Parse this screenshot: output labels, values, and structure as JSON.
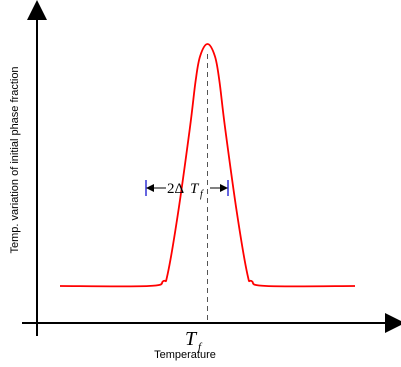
{
  "chart_data": {
    "type": "line",
    "xlabel": "Temperature",
    "ylabel": "Temp. variation of initial phase fraction",
    "x_tick_label": {
      "main": "T",
      "sub": "f"
    },
    "peak_marker_label": "T_f",
    "width_annotation": {
      "prefix": "2Δ",
      "main": "T",
      "sub": "f"
    },
    "grid": false,
    "legend": "none",
    "colors": {
      "curve": "#ff0000",
      "axes": "#000000",
      "width_marker": "#0000cc",
      "dashed_line": "#555555"
    },
    "series": [
      {
        "values_note_skip": false,
        "x": [
          -1.0,
          -0.4,
          -0.3,
          -0.27,
          -0.2,
          -0.12,
          -0.08,
          -0.05,
          0.0,
          0.05,
          0.08,
          0.12,
          0.2,
          0.27,
          0.3,
          0.4,
          1.0
        ],
        "y": [
          0.0,
          0.0,
          0.02,
          0.05,
          0.3,
          0.65,
          0.85,
          0.95,
          1.0,
          0.95,
          0.85,
          0.65,
          0.3,
          0.05,
          0.02,
          0.0,
          0.0
        ]
      }
    ],
    "xlim": [
      -1.0,
      1.0
    ],
    "ylim": [
      0.0,
      1.0
    ]
  }
}
